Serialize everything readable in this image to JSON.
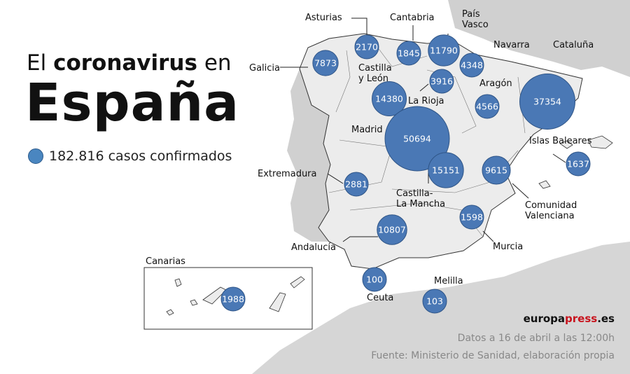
{
  "title": {
    "prefix": "El",
    "bold": "coronavirus",
    "suffix": "en",
    "main": "España"
  },
  "legend": {
    "label": "182.816 casos confirmados",
    "color": "#4a86c0"
  },
  "brand": {
    "part1": "europa",
    "part2": "press",
    "part3": ".es",
    "accent": "#c8141e"
  },
  "date_note": "Datos a 16 de abril a las 12:00h",
  "source_note": "Fuente: Ministerio de Sanidad, elaboración propia",
  "inset_label": "Canarias",
  "colors": {
    "bubble": "#4a78b5",
    "bubble_stroke": "#2f5587",
    "land": "#ececec",
    "neighbor": "#d0d0d0"
  },
  "regions": [
    {
      "name": "Galicia",
      "cases": 7873
    },
    {
      "name": "Asturias",
      "cases": 2170
    },
    {
      "name": "Cantabria",
      "cases": 1845
    },
    {
      "name": "País Vasco",
      "cases": 11790
    },
    {
      "name": "Navarra",
      "cases": 4348
    },
    {
      "name": "La Rioja",
      "cases": 3916
    },
    {
      "name": "Castilla y León",
      "cases": 14380
    },
    {
      "name": "Aragón",
      "cases": 4566
    },
    {
      "name": "Cataluña",
      "cases": 37354
    },
    {
      "name": "Madrid",
      "cases": 50694
    },
    {
      "name": "Castilla-La Mancha",
      "cases": 15151
    },
    {
      "name": "Comunidad Valenciana",
      "cases": 9615
    },
    {
      "name": "Islas Baleares",
      "cases": 1637
    },
    {
      "name": "Extremadura",
      "cases": 2881
    },
    {
      "name": "Murcia",
      "cases": 1598
    },
    {
      "name": "Andalucía",
      "cases": 10807
    },
    {
      "name": "Ceuta",
      "cases": 100
    },
    {
      "name": "Melilla",
      "cases": 103
    },
    {
      "name": "Canarias",
      "cases": 1988
    }
  ]
}
